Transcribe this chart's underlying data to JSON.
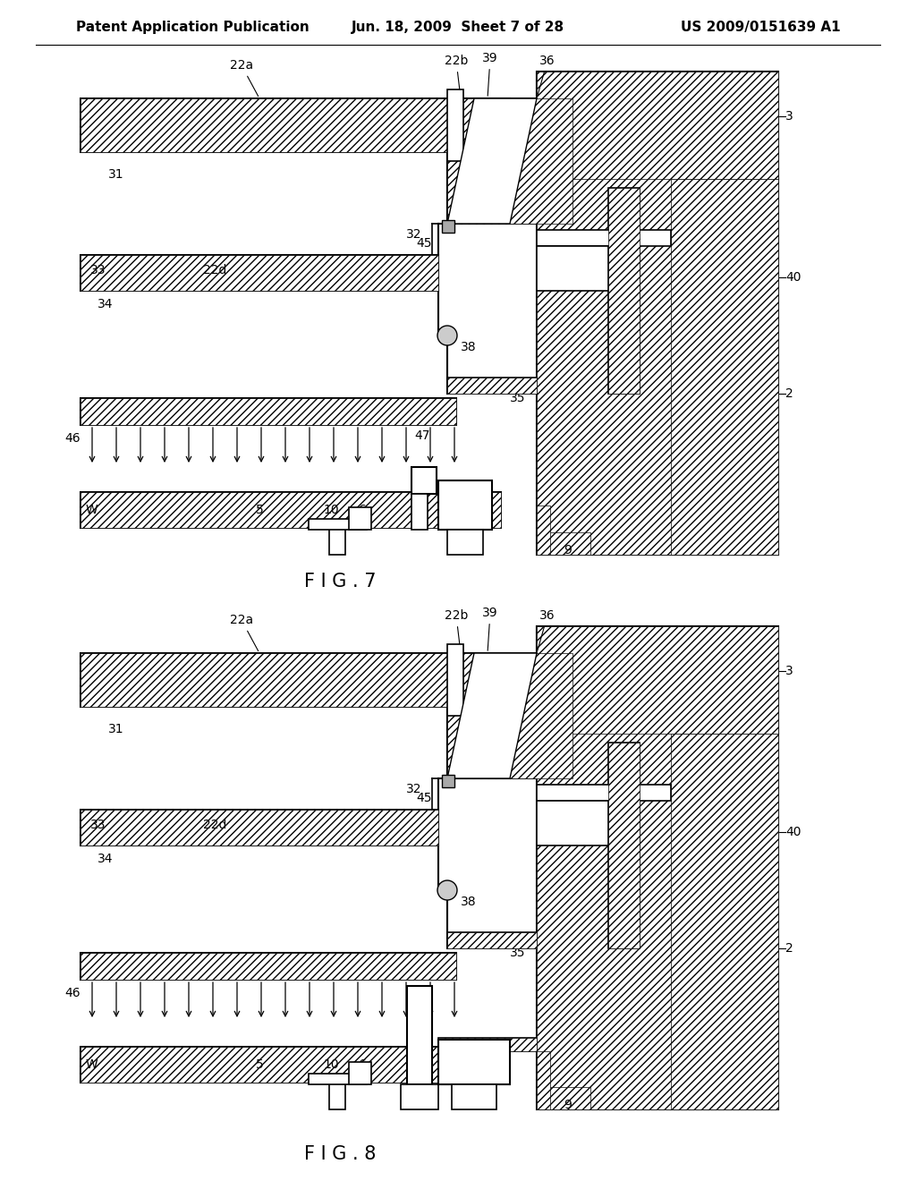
{
  "background_color": "#ffffff",
  "header_left": "Patent Application Publication",
  "header_center": "Jun. 18, 2009  Sheet 7 of 28",
  "header_right": "US 2009/0151639 A1",
  "fig7_label": "F I G . 7",
  "fig8_label": "F I G . 8",
  "line_color": "#000000",
  "font_size_header": 11,
  "font_size_label": 15,
  "font_size_annotation": 10
}
